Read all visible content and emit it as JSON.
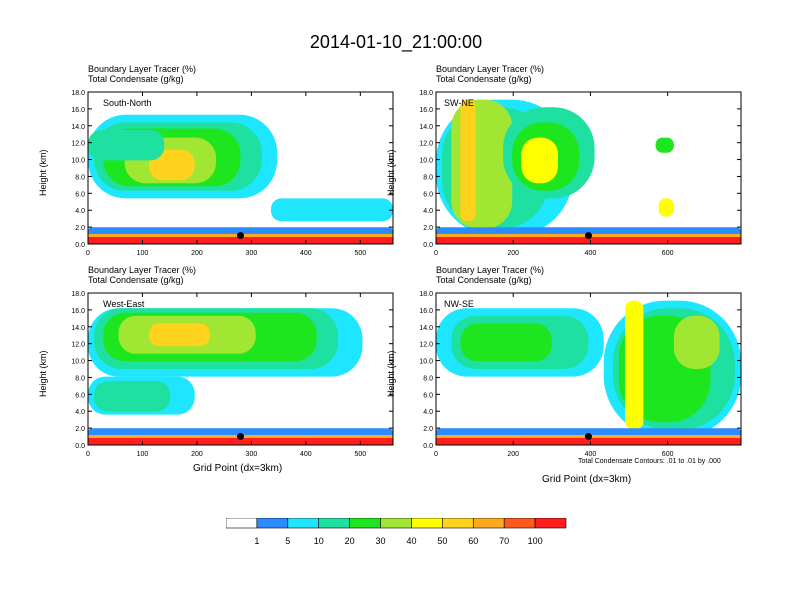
{
  "title": "2014-01-10_21:00:00",
  "panel_header": {
    "line1": "Boundary Layer Tracer   (%)",
    "line2": "Total Condensate   (g/kg)"
  },
  "y_axis_label": "Height (km)",
  "x_axis_label": "Grid Point (dx=3km)",
  "contour_note": "Total Condensate Contours: .01 to .01 by .000",
  "colors": {
    "levels": [
      "#ffffff",
      "#2c8cff",
      "#1ee6ff",
      "#1ee0a0",
      "#1ee61e",
      "#a0e632",
      "#ffff00",
      "#ffd21e",
      "#ffaa1e",
      "#ff5a1e",
      "#ff1e1e"
    ]
  },
  "chart_data": [
    {
      "type": "heatmap",
      "label": "South-North",
      "xlim": [
        0,
        560
      ],
      "xticks": [
        "0",
        "100",
        "200",
        "300",
        "400",
        "500"
      ],
      "ylim": [
        0,
        18
      ],
      "yticks": [
        "0.0",
        "2.0",
        "4.0",
        "6.0",
        "8.0",
        "10.0",
        "12.0",
        "14.0",
        "16.0",
        "18.0"
      ],
      "marker_x": 280,
      "marker_y": 1.0
    },
    {
      "type": "heatmap",
      "label": "SW-NE",
      "xlim": [
        0,
        790
      ],
      "xticks": [
        "0",
        "200",
        "400",
        "600"
      ],
      "ylim": [
        0,
        18
      ],
      "yticks": [
        "0.0",
        "2.0",
        "4.0",
        "6.0",
        "8.0",
        "10.0",
        "12.0",
        "14.0",
        "16.0",
        "18.0"
      ],
      "marker_x": 395,
      "marker_y": 1.0
    },
    {
      "type": "heatmap",
      "label": "West-East",
      "xlim": [
        0,
        560
      ],
      "xticks": [
        "0",
        "100",
        "200",
        "300",
        "400",
        "500"
      ],
      "ylim": [
        0,
        18
      ],
      "yticks": [
        "0.0",
        "2.0",
        "4.0",
        "6.0",
        "8.0",
        "10.0",
        "12.0",
        "14.0",
        "16.0",
        "18.0"
      ],
      "marker_x": 280,
      "marker_y": 1.0
    },
    {
      "type": "heatmap",
      "label": "NW-SE",
      "xlim": [
        0,
        790
      ],
      "xticks": [
        "0",
        "200",
        "400",
        "600"
      ],
      "ylim": [
        0,
        18
      ],
      "yticks": [
        "0.0",
        "2.0",
        "4.0",
        "6.0",
        "8.0",
        "10.0",
        "12.0",
        "14.0",
        "16.0",
        "18.0"
      ],
      "marker_x": 395,
      "marker_y": 1.0
    }
  ],
  "colorbar": {
    "labels": [
      "1",
      "5",
      "10",
      "20",
      "30",
      "40",
      "50",
      "60",
      "70",
      "100"
    ]
  }
}
